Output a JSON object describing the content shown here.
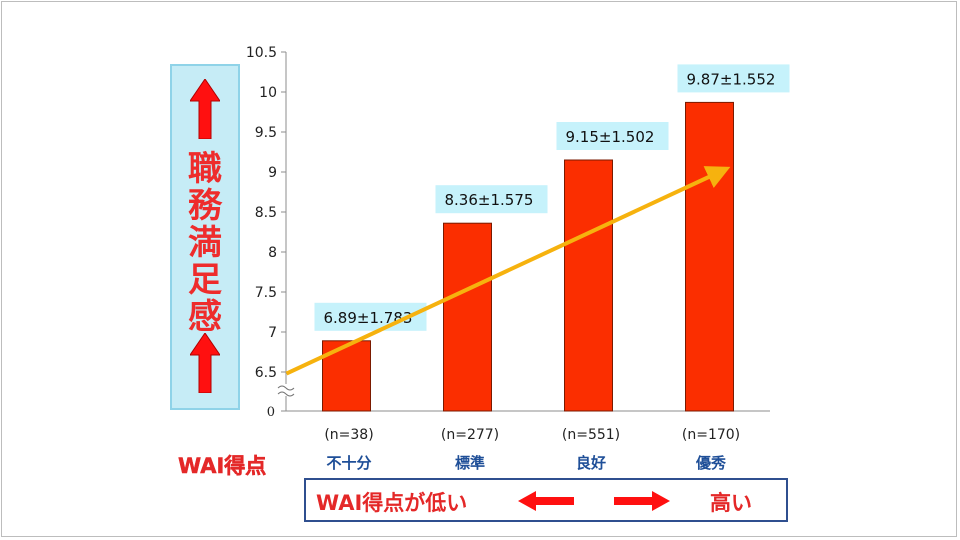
{
  "colors": {
    "bar": "#fb2e00",
    "bar_stroke": "#7a1a00",
    "label_bg": "#c6f2fb",
    "trend_arrow": "#f6b20e",
    "accent_red": "#e42828",
    "category_blue": "#1f4f98"
  },
  "y_panel": {
    "title": "職務満足感",
    "icon": "up-arrow-icon"
  },
  "x_group_label": "WAI得点",
  "bottom_scale": {
    "low_label": "WAI得点が低い",
    "high_label": "高い",
    "icons": [
      "left-arrow-icon",
      "right-arrow-icon"
    ]
  },
  "chart_data": {
    "type": "bar",
    "title": "",
    "xlabel": "WAI得点",
    "ylabel": "職務満足感",
    "ylim": [
      6.0,
      10.5
    ],
    "y_axis_break": {
      "shown": true,
      "baseline_tick": "0"
    },
    "yticks": [
      "6.5",
      "7",
      "7.5",
      "8",
      "8.5",
      "9",
      "9.5",
      "10",
      "10.5"
    ],
    "grid": false,
    "categories": [
      "不十分",
      "標準",
      "良好",
      "優秀"
    ],
    "n_labels": [
      "(n=38)",
      "(n=277)",
      "(n=551)",
      "(n=170)"
    ],
    "values": [
      6.89,
      8.36,
      9.15,
      9.87
    ],
    "sd": [
      1.783,
      1.575,
      1.502,
      1.552
    ],
    "data_labels": [
      "6.89±1.783",
      "8.36±1.575",
      "9.15±1.502",
      "9.87±1.552"
    ],
    "trend": {
      "from_value": 6.48,
      "to_value": 9.0,
      "direction": "increasing"
    }
  }
}
